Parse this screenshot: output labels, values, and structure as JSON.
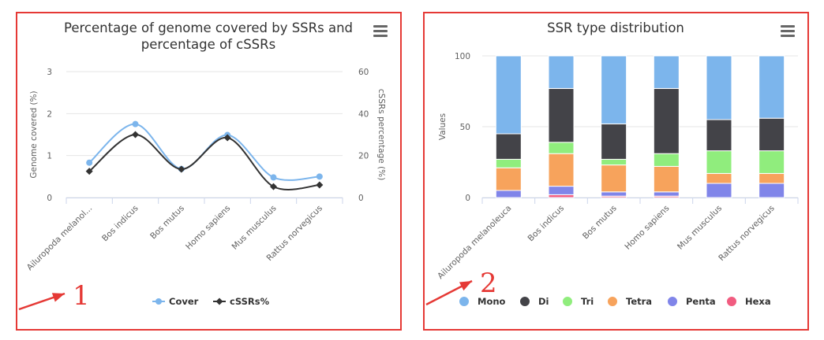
{
  "colors": {
    "frame": "#e53935",
    "annotation": "#e53935"
  },
  "panels": [
    {
      "annotation": "1",
      "menu_icon": "hamburger-menu-icon"
    },
    {
      "annotation": "2",
      "menu_icon": "hamburger-menu-icon"
    }
  ],
  "chart_data": [
    {
      "type": "line",
      "title": "Percentage of genome covered by SSRs and percentage of cSSRs",
      "title_lines": [
        "Percentage of genome covered by SSRs and",
        "percentage of cSSRs"
      ],
      "categories": [
        "Ailuropoda melanoleuca",
        "Bos indicus",
        "Bos mutus",
        "Homo sapiens",
        "Mus musculus",
        "Rattus norvegicus"
      ],
      "category_labels": [
        "Ailuropoda melanol...",
        "Bos indicus",
        "Bos mutus",
        "Homo sapiens",
        "Mus musculus",
        "Rattus norvegicus"
      ],
      "ylabel": "Genome covered (%)",
      "ylabel_right": "cSSRs percentage (%)",
      "ylim": [
        0,
        3
      ],
      "yticks": [
        0,
        1,
        2,
        3
      ],
      "ylim_right": [
        0,
        60
      ],
      "yticks_right": [
        0,
        20,
        40,
        60
      ],
      "grid": true,
      "smooth": true,
      "legend_position": "bottom",
      "series": [
        {
          "name": "Cover",
          "axis": "left",
          "color": "#7cb5ec",
          "marker": "circle",
          "values": [
            0.83,
            1.75,
            0.68,
            1.49,
            0.48,
            0.5
          ]
        },
        {
          "name": "cSSRs%",
          "axis": "right",
          "color": "#333333",
          "marker": "diamond",
          "values": [
            12.5,
            30,
            13.5,
            28.5,
            5.2,
            6
          ]
        }
      ]
    },
    {
      "type": "bar",
      "stacked": true,
      "title": "SSR type distribution",
      "categories": [
        "Ailuropoda melanoleuca",
        "Bos indicus",
        "Bos mutus",
        "Homo sapiens",
        "Mus musculus",
        "Rattus norvegicus"
      ],
      "ylabel": "Values",
      "ylim": [
        0,
        100
      ],
      "yticks": [
        0,
        50,
        100
      ],
      "grid": true,
      "legend_position": "bottom",
      "series": [
        {
          "name": "Mono",
          "color": "#7cb5ec",
          "values": [
            55,
            23,
            48,
            23,
            45,
            44
          ]
        },
        {
          "name": "Di",
          "color": "#434348",
          "values": [
            18,
            38,
            25,
            46,
            22,
            23
          ]
        },
        {
          "name": "Tri",
          "color": "#90ed7d",
          "values": [
            6,
            8,
            4,
            9,
            16,
            16
          ]
        },
        {
          "name": "Tetra",
          "color": "#f7a35c",
          "values": [
            16,
            23,
            19,
            18,
            7,
            7
          ]
        },
        {
          "name": "Penta",
          "color": "#8085e9",
          "values": [
            5,
            6,
            3,
            3,
            10,
            10
          ]
        },
        {
          "name": "Hexa",
          "color": "#f15c80",
          "values": [
            0,
            2,
            1,
            1,
            0,
            0
          ]
        }
      ]
    }
  ]
}
